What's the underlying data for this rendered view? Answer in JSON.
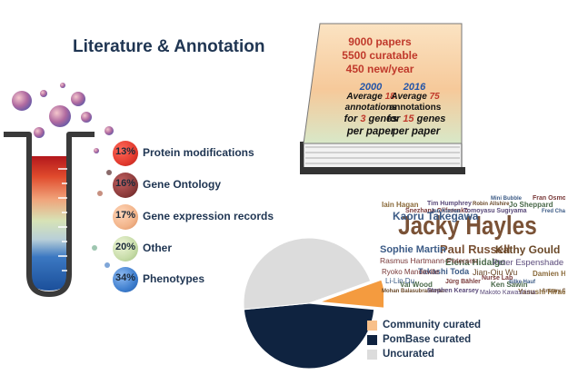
{
  "title": "Literature & Annotation",
  "categories": [
    {
      "pct": "13%",
      "label": "Protein modifications",
      "color": "#e23a2e"
    },
    {
      "pct": "16%",
      "label": "Gene Ontology",
      "color": "#8c3b3b"
    },
    {
      "pct": "17%",
      "label": "Gene expression records",
      "color": "#f2b48a"
    },
    {
      "pct": "20%",
      "label": "Other",
      "color": "#c7dca8"
    },
    {
      "pct": "34%",
      "label": "Phenotypes",
      "color": "#3f7fcf"
    }
  ],
  "book": {
    "papers": "9000 papers",
    "curatable": "5500 curatable",
    "new_per_year": "450 new/year",
    "col_2000": {
      "year": "2000",
      "line1_pre": "Average ",
      "line1_num": "18",
      "line2": "annotations",
      "line3_pre": "for ",
      "line3_num": "3",
      "line3_post": " genes",
      "line4": "per paper"
    },
    "col_2016": {
      "year": "2016",
      "line1_pre": "Average ",
      "line1_num": "75",
      "line2": "annotations",
      "line3_pre": "for ",
      "line3_num": "15",
      "line3_post": " genes",
      "line4": "per paper"
    }
  },
  "word_cloud": {
    "large": [
      "Jacky Hayles"
    ],
    "medium": [
      "Kaoru Takegawa",
      "Paul Russell",
      "Kathy Gould",
      "Sophie Martin",
      "Elena Hidalgo",
      "Peter Espenshade",
      "Rasmus Hartmann-Petersen",
      "Takashi Toda",
      "Jian-Qiu Wu",
      "Ryoko Mandeville",
      "Li-Lin Du",
      "Makoto Kawashima"
    ],
    "small": [
      "Mini Bubble",
      "Fran Osmond",
      "Jo Sheppard",
      "Robin Allshire",
      "Tim Humphrey",
      "Iain Hagan",
      "Fred Chang",
      "Snezhana Oliferenko",
      "Ken Sawin",
      "Mohan Balasubramanian",
      "Stephen Kearsey",
      "Damien Hermand",
      "Silke Hauf",
      "Jürg Bähler",
      "Val Wood",
      "Antony Carr",
      "Tomoyasu Sugiyama",
      "Yasushi Hiraoka",
      "Jan Kuchar",
      "Nurse Lab"
    ]
  },
  "pie": {
    "segments": [
      {
        "label": "Community curated",
        "value": 7,
        "color": "#f49b3f"
      },
      {
        "label": "PomBase curated",
        "value": 47,
        "color": "#0f2340"
      },
      {
        "label": "Uncurated",
        "value": 46,
        "color": "#dcdcdc"
      }
    ]
  },
  "colors": {
    "title": "#1f3552",
    "tube_outline": "#3a3a3a",
    "bubble": "#8a7fb8"
  }
}
